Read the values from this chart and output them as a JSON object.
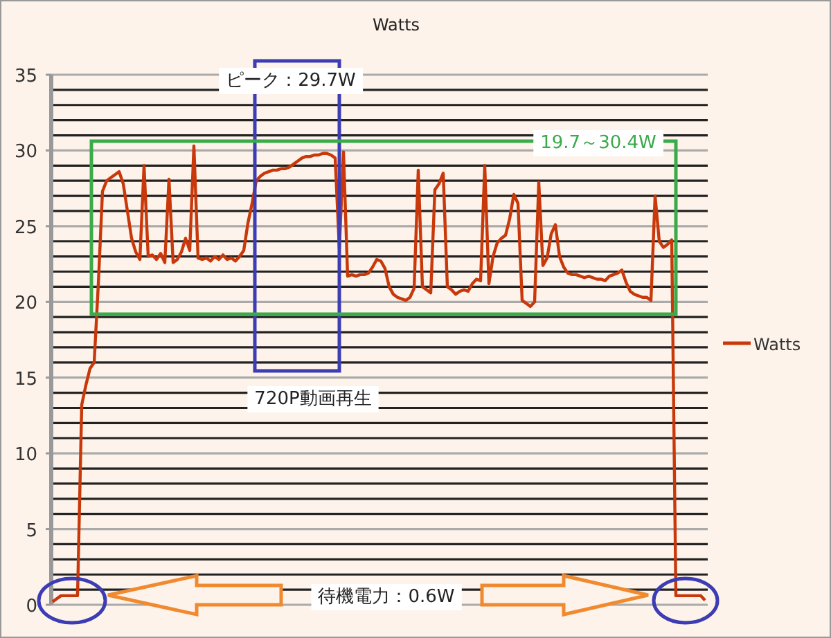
{
  "chart_data": {
    "type": "line",
    "title": "Watts",
    "categories": [
      null,
      null,
      null,
      null,
      null,
      null,
      null,
      null,
      null,
      null,
      null,
      null,
      null,
      null,
      null,
      null,
      null,
      null,
      null,
      null,
      null,
      null,
      null,
      null,
      null,
      null,
      null,
      null,
      null,
      null,
      null,
      null,
      null,
      null,
      null,
      null,
      null,
      null,
      null,
      null,
      null,
      null,
      null,
      null,
      null,
      null,
      null,
      null,
      null,
      null,
      null,
      null,
      null,
      null,
      null,
      null,
      null,
      null,
      null,
      null,
      null,
      null,
      null,
      null,
      null,
      null,
      null,
      null,
      null,
      null,
      null,
      null,
      null,
      null,
      null,
      null,
      null,
      null,
      null,
      null,
      null,
      null,
      null,
      null,
      null,
      null,
      null,
      null,
      null,
      null,
      null,
      null,
      null,
      null,
      null,
      null,
      null,
      null,
      null,
      null,
      null,
      null,
      null,
      null,
      null,
      null,
      null,
      null,
      null,
      null,
      null,
      null,
      null,
      null,
      null,
      null,
      null,
      null,
      null,
      null,
      null,
      null,
      null,
      null,
      null,
      null,
      null,
      null,
      null,
      null,
      null,
      null,
      null,
      null,
      null,
      null,
      null,
      null,
      null,
      null,
      null,
      null,
      null,
      null,
      null,
      null,
      null,
      null,
      null,
      null,
      null,
      null,
      null,
      null,
      null,
      null,
      null,
      null
    ],
    "series": [
      {
        "name": "Watts",
        "color": "#c8380a",
        "values": [
          0.2,
          0.4,
          0.6,
          0.6,
          0.6,
          0.6,
          0.6,
          13.2,
          14.5,
          15.6,
          16,
          21.2,
          27.3,
          28,
          28.2,
          28.4,
          28.6,
          27.8,
          26,
          24.2,
          23.3,
          22.8,
          29,
          23,
          23.1,
          22.8,
          23.2,
          22.6,
          28.1,
          22.6,
          22.8,
          23.3,
          24.2,
          23.4,
          30.3,
          22.9,
          22.8,
          22.9,
          22.7,
          23,
          22.8,
          23.1,
          22.8,
          22.9,
          22.7,
          23,
          23.4,
          25.2,
          26.5,
          28,
          28.3,
          28.5,
          28.6,
          28.7,
          28.7,
          28.8,
          28.8,
          28.9,
          29.1,
          29.3,
          29.5,
          29.6,
          29.6,
          29.7,
          29.7,
          29.8,
          29.8,
          29.7,
          29.5,
          23.5,
          29.9,
          21.7,
          21.8,
          21.7,
          21.8,
          21.8,
          21.9,
          22.3,
          22.8,
          22.7,
          22.2,
          21,
          20.5,
          20.3,
          20.2,
          20.1,
          20.3,
          20.9,
          28.7,
          21,
          20.8,
          20.6,
          27.4,
          27.8,
          28.5,
          21,
          20.8,
          20.5,
          20.7,
          20.8,
          20.7,
          21.2,
          21.5,
          21.4,
          29,
          21.2,
          23,
          23.9,
          24.2,
          24.4,
          25.5,
          27.1,
          26.5,
          20.1,
          19.9,
          19.7,
          20,
          27.9,
          22.4,
          22.9,
          24.5,
          25.1,
          23,
          22.3,
          21.9,
          21.8,
          21.8,
          21.7,
          21.6,
          21.7,
          21.6,
          21.5,
          21.5,
          21.4,
          21.7,
          21.8,
          21.9,
          22.1,
          21.3,
          20.7,
          20.5,
          20.4,
          20.3,
          20.3,
          20.1,
          27,
          24,
          23.6,
          23.8,
          24.1,
          0.6,
          0.6,
          0.6,
          0.6,
          0.6,
          0.6,
          0.6,
          0.3
        ]
      }
    ],
    "ylim": [
      0,
      35
    ],
    "yticks": [
      0,
      5,
      10,
      15,
      20,
      25,
      30,
      35
    ],
    "grid": "y",
    "legend": "right",
    "line_style": "solid",
    "marker": "none",
    "annotations": [
      "ピーク：29.7W",
      "720P動画再生",
      "19.7～30.4W",
      "待機電力：0.6W"
    ]
  }
}
